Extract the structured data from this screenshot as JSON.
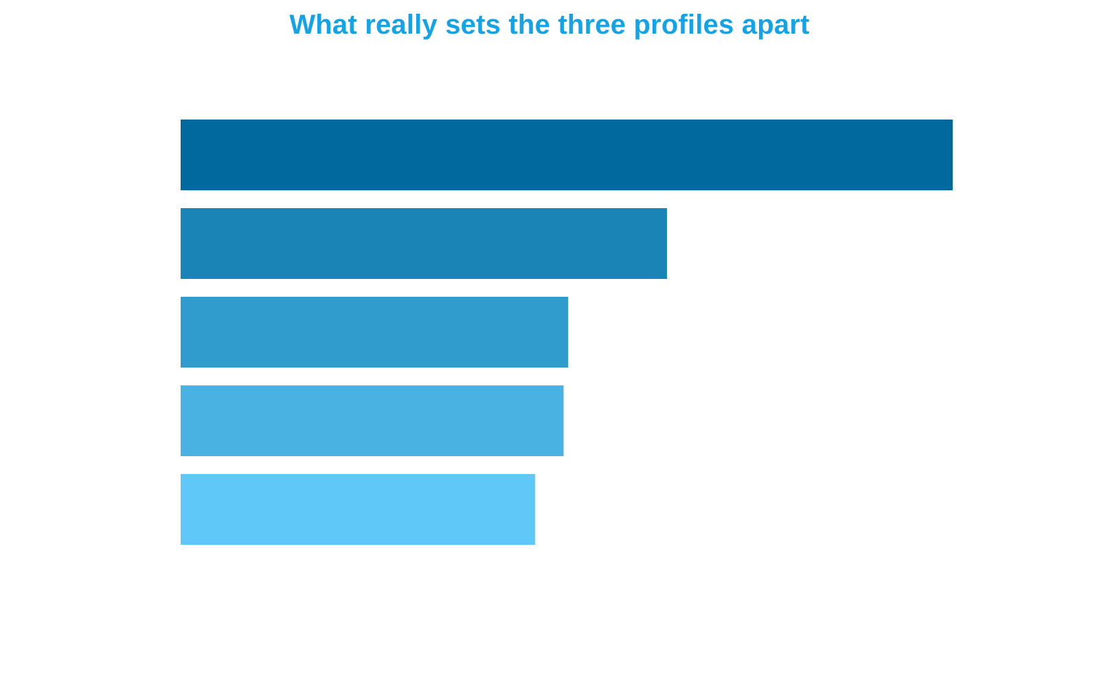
{
  "chart_data": {
    "type": "bar",
    "orientation": "horizontal",
    "title": "What really sets the three profiles apart",
    "title_color": "#14a3e6",
    "categories": [
      "",
      "",
      "",
      "",
      ""
    ],
    "values": [
      1.0,
      0.63,
      0.502,
      0.496,
      0.459
    ],
    "xlim": [
      0,
      1.0
    ],
    "colors": [
      "#02699f",
      "#1a84b6",
      "#309bcd",
      "#49b2e2",
      "#60c8f8"
    ],
    "grid": false,
    "legend": "none",
    "xlabel": "",
    "ylabel": ""
  }
}
